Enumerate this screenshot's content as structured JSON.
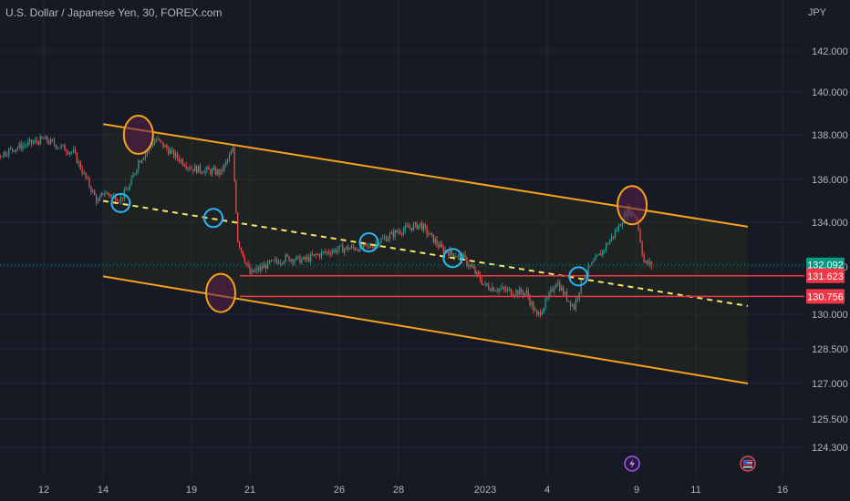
{
  "header": {
    "title": "U.S. Dollar / Japanese Yen, 30, FOREX.com",
    "currency": "JPY"
  },
  "colors": {
    "background": "#161a25",
    "grid": "#232734",
    "up": "#26a69a",
    "down": "#ef5350",
    "channel": "#f7a21b",
    "midline": "#f5e663",
    "marker_orange": "#f7a21b",
    "marker_blue": "#29b6f6",
    "hline": "#f23645",
    "last_price_badge": "#089981",
    "level_badge": "#f23645",
    "axis_text": "#b2b5be"
  },
  "chart_data": {
    "type": "candlestick",
    "title": "U.S. Dollar / Japanese Yen, 30, FOREX.com",
    "y_unit": "JPY",
    "ylim": [
      123.7,
      143.3
    ],
    "y_ticks": [
      "142.000",
      "140.000",
      "138.000",
      "136.000",
      "134.000",
      "132.000",
      "130.000",
      "128.500",
      "127.000",
      "125.500",
      "124.300"
    ],
    "x_ticks": [
      "12",
      "14",
      "19",
      "21",
      "26",
      "28",
      "2023",
      "4",
      "9",
      "11",
      "16"
    ],
    "grid": true,
    "price_path": [
      {
        "x": "2022-12-08",
        "y": 136.6
      },
      {
        "x": "2022-12-09",
        "y": 136.2
      },
      {
        "x": "2022-12-10",
        "y": 136.8
      },
      {
        "x": "2022-12-11",
        "y": 137.4
      },
      {
        "x": "2022-12-12",
        "y": 137.8
      },
      {
        "x": "2022-12-13",
        "y": 137.2
      },
      {
        "x": "2022-12-13 20:00",
        "y": 134.9
      },
      {
        "x": "2022-12-14",
        "y": 135.4
      },
      {
        "x": "2022-12-15",
        "y": 135.1
      },
      {
        "x": "2022-12-15 12:00",
        "y": 135.7
      },
      {
        "x": "2022-12-16",
        "y": 136.8
      },
      {
        "x": "2022-12-17",
        "y": 137.8
      },
      {
        "x": "2022-12-18",
        "y": 137.1
      },
      {
        "x": "2022-12-19",
        "y": 136.5
      },
      {
        "x": "2022-12-20",
        "y": 136.3
      },
      {
        "x": "2022-12-20 10:00",
        "y": 137.3
      },
      {
        "x": "2022-12-20 14:00",
        "y": 133.2
      },
      {
        "x": "2022-12-21",
        "y": 131.7
      },
      {
        "x": "2022-12-22",
        "y": 132.1
      },
      {
        "x": "2022-12-23",
        "y": 132.4
      },
      {
        "x": "2022-12-24",
        "y": 132.3
      },
      {
        "x": "2022-12-25",
        "y": 132.6
      },
      {
        "x": "2022-12-26",
        "y": 132.8
      },
      {
        "x": "2022-12-27",
        "y": 132.9
      },
      {
        "x": "2022-12-28",
        "y": 133.6
      },
      {
        "x": "2022-12-29",
        "y": 133.9
      },
      {
        "x": "2022-12-30",
        "y": 132.8
      },
      {
        "x": "2022-12-31",
        "y": 132.4
      },
      {
        "x": "2023-01-01",
        "y": 131.2
      },
      {
        "x": "2023-01-02",
        "y": 131.0
      },
      {
        "x": "2023-01-03",
        "y": 130.9
      },
      {
        "x": "2023-01-03 12:00",
        "y": 129.9
      },
      {
        "x": "2023-01-04",
        "y": 130.6
      },
      {
        "x": "2023-01-04 12:00",
        "y": 131.4
      },
      {
        "x": "2023-01-05",
        "y": 130.8
      },
      {
        "x": "2023-01-05 12:00",
        "y": 130.3
      },
      {
        "x": "2023-01-06",
        "y": 131.6
      },
      {
        "x": "2023-01-07",
        "y": 132.6
      },
      {
        "x": "2023-01-08",
        "y": 133.8
      },
      {
        "x": "2023-01-08 12:00",
        "y": 134.6
      },
      {
        "x": "2023-01-09",
        "y": 134.2
      },
      {
        "x": "2023-01-09 06:00",
        "y": 132.2
      },
      {
        "x": "2023-01-09 12:00",
        "y": 132.092
      }
    ],
    "channel_lines": [
      {
        "name": "upper",
        "from": {
          "x": "2022-12-14",
          "y": 138.5
        },
        "to": {
          "x": "2023-01-14",
          "y": 133.8
        }
      },
      {
        "name": "lower",
        "from": {
          "x": "2022-12-14",
          "y": 131.6
        },
        "to": {
          "x": "2023-01-14",
          "y": 127.0
        }
      }
    ],
    "mid_line": {
      "from": {
        "x": "2022-12-14",
        "y": 135.0
      },
      "to": {
        "x": "2023-01-14",
        "y": 130.35
      }
    },
    "horizontal_levels": [
      {
        "value": 131.623,
        "label": "131.623"
      },
      {
        "value": 130.756,
        "label": "130.756"
      }
    ],
    "last_price": {
      "value": 132.092,
      "label": "132.092"
    },
    "markers": [
      {
        "kind": "orange",
        "x": "2022-12-16",
        "y": 138.0
      },
      {
        "kind": "orange",
        "x": "2022-12-20",
        "y": 130.9
      },
      {
        "kind": "orange",
        "x": "2023-01-08 18:00",
        "y": 134.8
      },
      {
        "kind": "blue",
        "x": "2022-12-15",
        "y": 134.9
      },
      {
        "kind": "blue",
        "x": "2022-12-19 18:00",
        "y": 134.2
      },
      {
        "kind": "blue",
        "x": "2022-12-27",
        "y": 133.1
      },
      {
        "kind": "blue",
        "x": "2022-12-30 12:00",
        "y": 132.4
      },
      {
        "kind": "blue",
        "x": "2023-01-05 18:00",
        "y": 131.6
      }
    ],
    "event_icons": [
      {
        "kind": "lightning-icon",
        "x": "2023-01-08 18:00"
      },
      {
        "kind": "us-flag-icon",
        "x": "2023-01-14"
      }
    ]
  }
}
